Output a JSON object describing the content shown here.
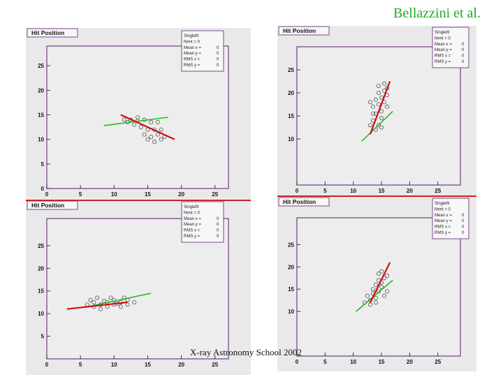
{
  "credit": "Bellazzini et al.",
  "footer": "X-ray Astronomy School 2002",
  "colors": {
    "frame": "#7a4a8a",
    "panel_bg": "#e9e9e9",
    "red_track": "#cc1111",
    "green_track": "#22bb22",
    "hits": "#555555",
    "divider": "#cc2222"
  },
  "chart_data": [
    {
      "type": "scatter",
      "title": "Hit Position",
      "stats": [
        "Singlefit",
        "Nent = 0",
        "Mean x =",
        "Mean y =",
        "RMS x =",
        "RMS y ="
      ],
      "stats_values": [
        "",
        "",
        "0",
        "0",
        "0",
        "0"
      ],
      "xlim": [
        0,
        27
      ],
      "ylim": [
        0,
        29
      ],
      "xticks": [
        0,
        5,
        10,
        15,
        20,
        25
      ],
      "yticks": [
        0,
        5,
        10,
        15,
        20,
        25
      ],
      "hits": [
        [
          12.5,
          14
        ],
        [
          13.5,
          14.5
        ],
        [
          14.5,
          14
        ],
        [
          15.5,
          13.5
        ],
        [
          16.5,
          13.5
        ],
        [
          13,
          13
        ],
        [
          14,
          12.5
        ],
        [
          15,
          12
        ],
        [
          16,
          12
        ],
        [
          17,
          12
        ],
        [
          14.5,
          11
        ],
        [
          15.5,
          10.5
        ],
        [
          16.5,
          11
        ],
        [
          17.5,
          10.5
        ],
        [
          15,
          10
        ],
        [
          16,
          9.5
        ],
        [
          17,
          10
        ],
        [
          13.5,
          13.8
        ],
        [
          12,
          13.5
        ],
        [
          11.5,
          14
        ]
      ],
      "red_track": [
        [
          11,
          15
        ],
        [
          19,
          10
        ]
      ],
      "green_track": [
        [
          8.5,
          12.8
        ],
        [
          18,
          14.5
        ]
      ]
    },
    {
      "type": "scatter",
      "title": "Hit Position",
      "stats": [
        "Singlefit",
        "Nent = 0",
        "Mean x =",
        "Mean y =",
        "RMS x =",
        "RMS y ="
      ],
      "stats_values": [
        "",
        "",
        "0",
        "0",
        "0",
        "0"
      ],
      "xlim": [
        0,
        29
      ],
      "ylim": [
        0,
        30
      ],
      "xticks": [
        0,
        5,
        10,
        15,
        20,
        25
      ],
      "yticks": [
        10,
        15,
        20,
        25
      ],
      "hits": [
        [
          14,
          12
        ],
        [
          14.5,
          13
        ],
        [
          13.5,
          14
        ],
        [
          15,
          14.5
        ],
        [
          14,
          15.5
        ],
        [
          15,
          16
        ],
        [
          13.5,
          17
        ],
        [
          14.5,
          17.5
        ],
        [
          15.5,
          18
        ],
        [
          14,
          18.5
        ],
        [
          15,
          19
        ],
        [
          16,
          19.5
        ],
        [
          14.5,
          20
        ],
        [
          15.5,
          20.5
        ],
        [
          16,
          21
        ],
        [
          14.5,
          21.5
        ],
        [
          15.5,
          22
        ],
        [
          13,
          13
        ],
        [
          15,
          12.5
        ],
        [
          13.5,
          15.5
        ],
        [
          16,
          17
        ],
        [
          13,
          18
        ]
      ],
      "red_track": [
        [
          13,
          11
        ],
        [
          16.5,
          22.5
        ]
      ],
      "green_track": [
        [
          11.5,
          9.5
        ],
        [
          17,
          16
        ]
      ]
    },
    {
      "type": "scatter",
      "title": "Hit Position",
      "stats": [
        "Singlefit",
        "Nent = 0",
        "Mean x =",
        "Mean y =",
        "RMS x =",
        "RMS y ="
      ],
      "stats_values": [
        "",
        "",
        "0",
        "0",
        "0",
        "0"
      ],
      "xlim": [
        0,
        27
      ],
      "ylim": [
        0,
        31
      ],
      "xticks": [
        0,
        5,
        10,
        15,
        20,
        25
      ],
      "yticks": [
        5,
        10,
        15,
        20,
        25
      ],
      "hits": [
        [
          6,
          12
        ],
        [
          7,
          11.5
        ],
        [
          8,
          12
        ],
        [
          9,
          12.5
        ],
        [
          10,
          12
        ],
        [
          11,
          12.5
        ],
        [
          12,
          13
        ],
        [
          7,
          12.5
        ],
        [
          8,
          11
        ],
        [
          9,
          11.5
        ],
        [
          10,
          13
        ],
        [
          11,
          11.5
        ],
        [
          12,
          12
        ],
        [
          13,
          12.5
        ],
        [
          6.5,
          13
        ],
        [
          7.5,
          13.5
        ],
        [
          9.5,
          13.5
        ],
        [
          11.5,
          13.5
        ],
        [
          8.5,
          12.8
        ],
        [
          10.5,
          12.2
        ]
      ],
      "red_track": [
        [
          3,
          11
        ],
        [
          12,
          12.5
        ]
      ],
      "green_track": [
        [
          6,
          11.5
        ],
        [
          15.5,
          14.5
        ]
      ]
    },
    {
      "type": "scatter",
      "title": "Hit Position",
      "stats": [
        "Singlefit",
        "Nent = 0",
        "Mean x =",
        "Mean y =",
        "RMS x =",
        "RMS y ="
      ],
      "stats_values": [
        "",
        "",
        "0",
        "0",
        "0",
        "0"
      ],
      "xlim": [
        0,
        29
      ],
      "ylim": [
        0,
        31
      ],
      "xticks": [
        0,
        5,
        10,
        15,
        20,
        25
      ],
      "yticks": [
        10,
        15,
        20,
        25
      ],
      "hits": [
        [
          12,
          12
        ],
        [
          13,
          12.5
        ],
        [
          14,
          13
        ],
        [
          13.5,
          14
        ],
        [
          14.5,
          14.5
        ],
        [
          15,
          15.5
        ],
        [
          14,
          16
        ],
        [
          15,
          16.5
        ],
        [
          15.5,
          17.5
        ],
        [
          14.5,
          17
        ],
        [
          16,
          18
        ],
        [
          15,
          19
        ],
        [
          12.5,
          13.5
        ],
        [
          13,
          11.5
        ],
        [
          14,
          12
        ],
        [
          16,
          14.5
        ],
        [
          15.5,
          13.5
        ],
        [
          13.5,
          15
        ],
        [
          14.5,
          18.5
        ]
      ],
      "red_track": [
        [
          13,
          12
        ],
        [
          16.5,
          21
        ]
      ],
      "green_track": [
        [
          10.5,
          10
        ],
        [
          17,
          17
        ]
      ]
    }
  ]
}
